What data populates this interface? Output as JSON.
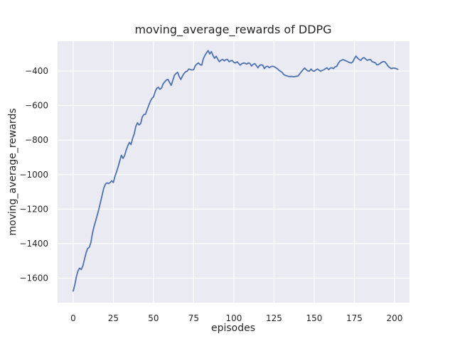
{
  "chart_data": {
    "type": "line",
    "title": "moving_average_rewards of DDPG",
    "xlabel": "episodes",
    "ylabel": "moving_average_rewards",
    "xlim": [
      -9.7,
      209.3
    ],
    "ylim": [
      -1742,
      -227
    ],
    "xticks": [
      0,
      25,
      50,
      75,
      100,
      125,
      150,
      175,
      200
    ],
    "xtick_labels": [
      "0",
      "25",
      "50",
      "75",
      "100",
      "125",
      "150",
      "175",
      "200"
    ],
    "yticks": [
      -400,
      -600,
      -800,
      -1000,
      -1200,
      -1400,
      -1600
    ],
    "ytick_labels": [
      "−400",
      "−600",
      "−800",
      "−1000",
      "−1200",
      "−1400",
      "−1600"
    ],
    "grid": true,
    "legend": "none",
    "style": "seaborn-darkgrid",
    "colors": {
      "figure_background": "#ffffff",
      "plot_background": "#eaeaf2",
      "grid_line": "#ffffff",
      "series_line": "#4c72b0",
      "text": "#262626"
    },
    "series": [
      {
        "name": "moving_average_rewards",
        "x_first": 0,
        "x_step": 1,
        "y": [
          -1675,
          -1640,
          -1592,
          -1558,
          -1542,
          -1550,
          -1530,
          -1492,
          -1455,
          -1428,
          -1422,
          -1395,
          -1340,
          -1300,
          -1268,
          -1235,
          -1200,
          -1160,
          -1120,
          -1080,
          -1056,
          -1048,
          -1052,
          -1046,
          -1036,
          -1046,
          -1010,
          -984,
          -954,
          -920,
          -888,
          -906,
          -890,
          -858,
          -833,
          -814,
          -826,
          -790,
          -764,
          -720,
          -700,
          -712,
          -704,
          -666,
          -652,
          -650,
          -624,
          -600,
          -576,
          -558,
          -550,
          -520,
          -500,
          -494,
          -506,
          -498,
          -474,
          -462,
          -452,
          -448,
          -466,
          -483,
          -454,
          -425,
          -414,
          -407,
          -432,
          -449,
          -429,
          -414,
          -404,
          -400,
          -388,
          -391,
          -394,
          -391,
          -369,
          -359,
          -353,
          -363,
          -366,
          -329,
          -309,
          -294,
          -281,
          -301,
          -287,
          -309,
          -326,
          -314,
          -331,
          -346,
          -337,
          -332,
          -341,
          -334,
          -332,
          -346,
          -341,
          -339,
          -350,
          -353,
          -346,
          -356,
          -366,
          -357,
          -353,
          -355,
          -360,
          -353,
          -356,
          -371,
          -361,
          -357,
          -368,
          -381,
          -367,
          -364,
          -366,
          -386,
          -374,
          -372,
          -380,
          -375,
          -372,
          -374,
          -380,
          -386,
          -395,
          -401,
          -407,
          -420,
          -425,
          -428,
          -431,
          -432,
          -431,
          -433,
          -432,
          -430,
          -428,
          -416,
          -404,
          -393,
          -382,
          -392,
          -399,
          -401,
          -388,
          -398,
          -401,
          -394,
          -388,
          -395,
          -401,
          -396,
          -393,
          -386,
          -381,
          -392,
          -383,
          -381,
          -386,
          -375,
          -373,
          -355,
          -342,
          -338,
          -333,
          -338,
          -342,
          -346,
          -351,
          -353,
          -347,
          -328,
          -313,
          -325,
          -333,
          -338,
          -326,
          -322,
          -330,
          -338,
          -334,
          -333,
          -345,
          -349,
          -352,
          -364,
          -362,
          -356,
          -349,
          -345,
          -347,
          -358,
          -372,
          -380,
          -386,
          -383,
          -383,
          -386,
          -390
        ]
      }
    ]
  }
}
